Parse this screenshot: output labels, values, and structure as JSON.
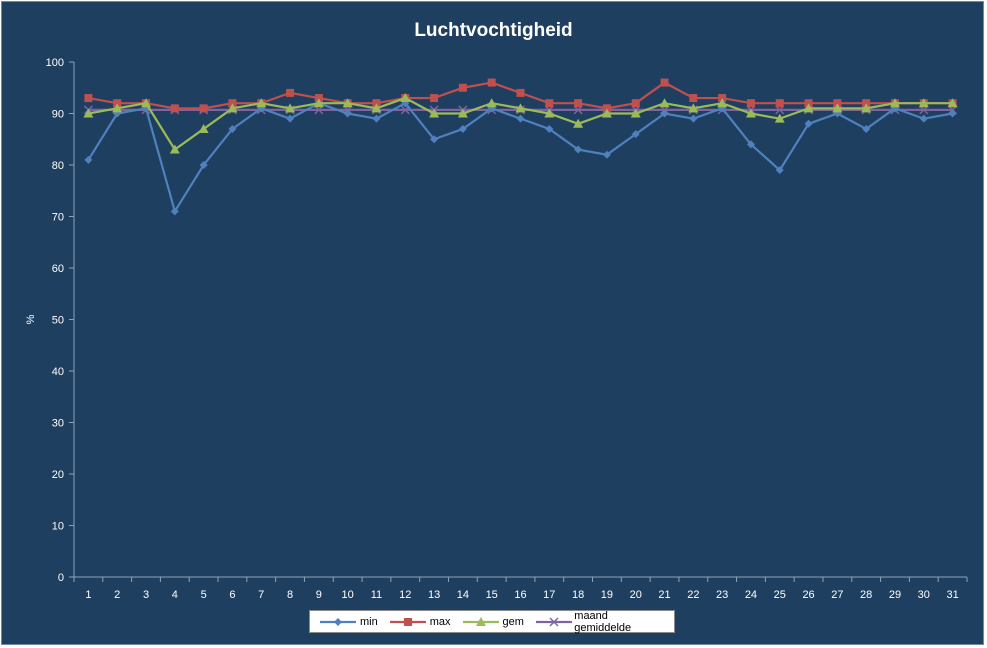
{
  "chart_data": {
    "type": "line",
    "title": "Luchtvochtigheid",
    "xlabel": "",
    "ylabel": "%",
    "ylim": [
      0,
      100
    ],
    "yticks": [
      0,
      10,
      20,
      30,
      40,
      50,
      60,
      70,
      80,
      90,
      100
    ],
    "categories": [
      "1",
      "2",
      "3",
      "4",
      "5",
      "6",
      "7",
      "8",
      "9",
      "10",
      "11",
      "12",
      "13",
      "14",
      "15",
      "16",
      "17",
      "18",
      "19",
      "20",
      "21",
      "22",
      "23",
      "24",
      "25",
      "26",
      "27",
      "28",
      "29",
      "30",
      "31"
    ],
    "grid": false,
    "legend_position": "bottom",
    "series": [
      {
        "name": "min",
        "color": "#4f81bd",
        "marker": "diamond",
        "values": [
          81,
          90,
          91,
          71,
          80,
          87,
          91,
          89,
          92,
          90,
          89,
          92,
          85,
          87,
          91,
          89,
          87,
          83,
          82,
          86,
          90,
          89,
          91,
          84,
          79,
          88,
          90,
          87,
          91,
          89,
          90
        ]
      },
      {
        "name": "max",
        "color": "#c0504d",
        "marker": "square",
        "values": [
          93,
          92,
          92,
          91,
          91,
          92,
          92,
          94,
          93,
          92,
          92,
          93,
          93,
          95,
          96,
          94,
          92,
          92,
          91,
          92,
          96,
          93,
          93,
          92,
          92,
          92,
          92,
          92,
          92,
          92,
          92
        ]
      },
      {
        "name": "gem",
        "color": "#9bbb59",
        "marker": "triangle",
        "values": [
          90,
          91,
          92,
          83,
          87,
          91,
          92,
          91,
          92,
          92,
          91,
          93,
          90,
          90,
          92,
          91,
          90,
          88,
          90,
          90,
          92,
          91,
          92,
          90,
          89,
          91,
          91,
          91,
          92,
          92,
          92
        ]
      },
      {
        "name": "maand gemiddelde",
        "color": "#8064a2",
        "marker": "x",
        "values": [
          90.7,
          90.7,
          90.7,
          90.7,
          90.7,
          90.7,
          90.7,
          90.7,
          90.7,
          90.7,
          90.7,
          90.7,
          90.7,
          90.7,
          90.7,
          90.7,
          90.7,
          90.7,
          90.7,
          90.7,
          90.7,
          90.7,
          90.7,
          90.7,
          90.7,
          90.7,
          90.7,
          90.7,
          90.7,
          90.7,
          90.7
        ]
      }
    ]
  }
}
